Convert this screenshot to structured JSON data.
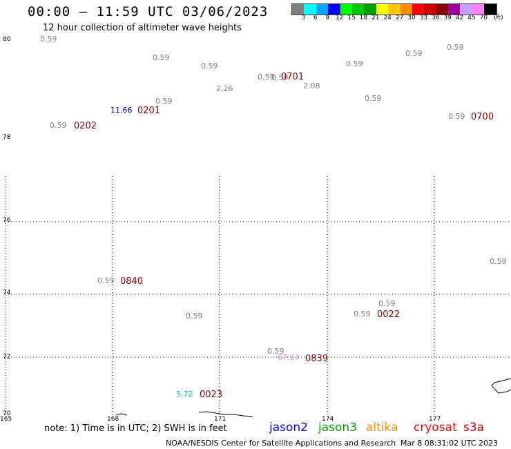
{
  "header": {
    "title": "00:00 – 11:59 UTC 03/06/2023",
    "subtitle": "12 hour collection of altimeter wave heights"
  },
  "legend": {
    "swatches": [
      "#808080",
      "#00ffff",
      "#00a8ff",
      "#0000ff",
      "#00ff00",
      "#00c800",
      "#00a000",
      "#ffff00",
      "#ffc800",
      "#ff8c00",
      "#ff0000",
      "#c80000",
      "#8c0000",
      "#a000a0",
      "#c8a0ff",
      "#ff80ff",
      "#000000"
    ],
    "labels": [
      "3",
      "6",
      "9",
      "12",
      "15",
      "18",
      "21",
      "24",
      "27",
      "30",
      "33",
      "36",
      "39",
      "42",
      "45",
      "70",
      "(ft)"
    ]
  },
  "axes": {
    "lat_labels": [
      "80",
      "78",
      "76",
      "74",
      "72",
      "70"
    ],
    "lon_labels": [
      "165",
      "168",
      "171",
      "174",
      "177"
    ]
  },
  "observations": [
    {
      "text": "0.59",
      "color": "#808080"
    },
    {
      "text": "0.59",
      "color": "#808080"
    },
    {
      "text": "0.59",
      "color": "#808080"
    },
    {
      "text": "0.59",
      "color": "#808080"
    },
    {
      "text": "0.59",
      "color": "#808080"
    },
    {
      "text": "2.26",
      "color": "#808080"
    },
    {
      "text": "2.08",
      "color": "#808080"
    },
    {
      "text": "0.59",
      "color": "#808080"
    },
    {
      "text": "0.59",
      "color": "#808080"
    },
    {
      "text": "0.59",
      "color": "#808080"
    },
    {
      "text": "0.59",
      "color": "#808080"
    },
    {
      "text": "11.66",
      "color": "#0000c8"
    },
    {
      "text": "0.59",
      "color": "#808080"
    },
    {
      "text": "0.59",
      "color": "#808080"
    },
    {
      "text": "0.59",
      "color": "#808080"
    },
    {
      "text": "0.59",
      "color": "#808080"
    },
    {
      "text": "0.59",
      "color": "#808080"
    },
    {
      "text": "0.59",
      "color": "#808080"
    },
    {
      "text": "0.59",
      "color": "#808080"
    },
    {
      "text": "0.59",
      "color": "#808080"
    },
    {
      "text": "0.59",
      "color": "#808080"
    },
    {
      "text": "67.14",
      "color": "#ff80ff"
    },
    {
      "text": "5.72",
      "color": "#00c8c8"
    }
  ],
  "pass_times": [
    "0701",
    "0201",
    "0202",
    "0700",
    "0840",
    "0022",
    "0839",
    "0023"
  ],
  "notes": {
    "text": "note: 1) Time is in UTC; 2) SWH is in feet",
    "missions": [
      {
        "name": "jason2",
        "color": "#0000ff"
      },
      {
        "name": "jason3",
        "color": "#00a000"
      },
      {
        "name": "altika",
        "color": "#ff8c00"
      },
      {
        "name": "cryosat",
        "color": "#ff0000"
      },
      {
        "name": "s3a",
        "color": "#c80000"
      }
    ],
    "credit": "NOAA/NESDIS Center for Satellite Applications and Research",
    "timestamp": "Mar  8 08:31:02 UTC 2023"
  }
}
